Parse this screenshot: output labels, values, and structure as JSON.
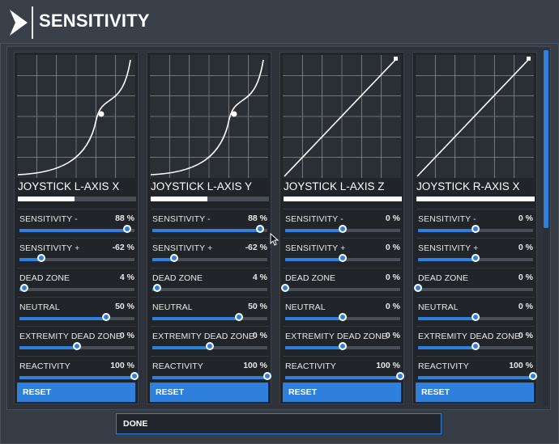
{
  "header": {
    "title": "SENSITIVITY",
    "logo": "chevron-right-logo-icon"
  },
  "panels": [
    {
      "axis_label": "JOYSTICK L-AXIS X",
      "axis_bar_level": 0.48,
      "curve": "exponential",
      "settings": [
        {
          "label": "SENSITIVITY -",
          "value": "88 %",
          "level": 0.94
        },
        {
          "label": "SENSITIVITY +",
          "value": "-62 %",
          "level": 0.19
        },
        {
          "label": "DEAD ZONE",
          "value": "4 %",
          "level": 0.04
        },
        {
          "label": "NEUTRAL",
          "value": "50 %",
          "level": 0.75
        },
        {
          "label": "EXTREMITY DEAD ZONE",
          "value": "0 %",
          "level": 0.5
        },
        {
          "label": "REACTIVITY",
          "value": "100 %",
          "level": 1.0
        }
      ],
      "reset_label": "RESET"
    },
    {
      "axis_label": "JOYSTICK L-AXIS Y",
      "axis_bar_level": 0.48,
      "curve": "exponential",
      "settings": [
        {
          "label": "SENSITIVITY -",
          "value": "88 %",
          "level": 0.94
        },
        {
          "label": "SENSITIVITY +",
          "value": "-62 %",
          "level": 0.19
        },
        {
          "label": "DEAD ZONE",
          "value": "4 %",
          "level": 0.04
        },
        {
          "label": "NEUTRAL",
          "value": "50 %",
          "level": 0.75
        },
        {
          "label": "EXTREMITY DEAD ZONE",
          "value": "0 %",
          "level": 0.5
        },
        {
          "label": "REACTIVITY",
          "value": "100 %",
          "level": 1.0
        }
      ],
      "reset_label": "RESET"
    },
    {
      "axis_label": "JOYSTICK L-AXIS Z",
      "axis_bar_level": 1.0,
      "curve": "linear",
      "settings": [
        {
          "label": "SENSITIVITY -",
          "value": "0 %",
          "level": 0.5
        },
        {
          "label": "SENSITIVITY +",
          "value": "0 %",
          "level": 0.5
        },
        {
          "label": "DEAD ZONE",
          "value": "0 %",
          "level": 0.0
        },
        {
          "label": "NEUTRAL",
          "value": "0 %",
          "level": 0.5
        },
        {
          "label": "EXTREMITY DEAD ZONE",
          "value": "0 %",
          "level": 0.5
        },
        {
          "label": "REACTIVITY",
          "value": "100 %",
          "level": 1.0
        }
      ],
      "reset_label": "RESET"
    },
    {
      "axis_label": "JOYSTICK R-AXIS X",
      "axis_bar_level": 1.0,
      "curve": "linear",
      "settings": [
        {
          "label": "SENSITIVITY -",
          "value": "0 %",
          "level": 0.5
        },
        {
          "label": "SENSITIVITY +",
          "value": "0 %",
          "level": 0.5
        },
        {
          "label": "DEAD ZONE",
          "value": "0 %",
          "level": 0.0
        },
        {
          "label": "NEUTRAL",
          "value": "0 %",
          "level": 0.5
        },
        {
          "label": "EXTREMITY DEAD ZONE",
          "value": "0 %",
          "level": 0.5
        },
        {
          "label": "REACTIVITY",
          "value": "100 %",
          "level": 1.0
        }
      ],
      "reset_label": "RESET"
    }
  ],
  "footer": {
    "done_label": "DONE"
  },
  "colors": {
    "accent": "#2f7fdc",
    "panel": "#212429",
    "background": "#363c46",
    "graph": "#e7e7e7"
  }
}
